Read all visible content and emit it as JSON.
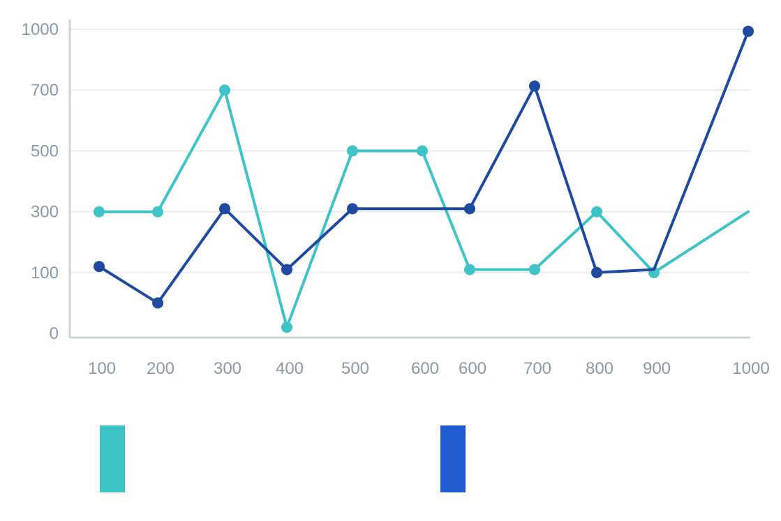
{
  "colors": {
    "background": "#ffffff",
    "grid": "#e8ecf3",
    "axis": "#cdd3de",
    "tick_text": "#8d97a8"
  },
  "chart_data": {
    "type": "line",
    "title": "",
    "xlabel": "",
    "ylabel": "",
    "categories": [
      "100",
      "200",
      "300",
      "400",
      "500",
      "600",
      "600",
      "700",
      "800",
      "900",
      "1000"
    ],
    "y_ticks": [
      0,
      100,
      300,
      500,
      700,
      1000
    ],
    "ylim": [
      0,
      1000
    ],
    "grid": true,
    "legend_position": "bottom",
    "series": [
      {
        "color": "#3ec4c6",
        "values": [
          300,
          300,
          700,
          10,
          500,
          500,
          110,
          110,
          300,
          100,
          300
        ],
        "markers": [
          true,
          true,
          true,
          true,
          true,
          true,
          true,
          true,
          true,
          true,
          false
        ]
      },
      {
        "color": "#1f4aa0",
        "values": [
          120,
          50,
          310,
          110,
          310,
          310,
          310,
          720,
          100,
          110,
          990
        ],
        "markers": [
          true,
          true,
          true,
          true,
          true,
          false,
          true,
          true,
          true,
          false,
          true
        ]
      }
    ],
    "legend_swatches": [
      "#3ec4c6",
      "#1f5bd1"
    ]
  }
}
